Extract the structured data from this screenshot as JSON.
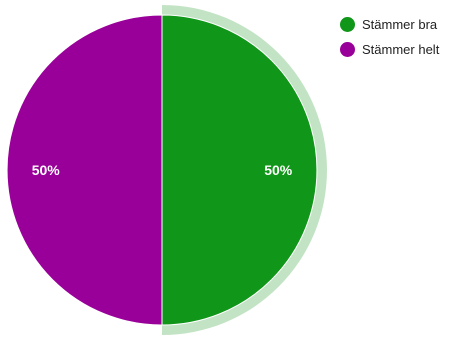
{
  "chart_data": {
    "type": "pie",
    "title": "",
    "categories": [
      "Stämmer bra",
      "Stämmer helt"
    ],
    "values": [
      50,
      50
    ],
    "data_labels": [
      "50%",
      "50%"
    ],
    "colors": [
      "#109618",
      "#990099"
    ],
    "highlight_color": "#c3e3c5",
    "highlighted_category": "Stämmer bra",
    "legend_placement": "right"
  },
  "legend": {
    "items": [
      {
        "label": "Stämmer bra",
        "color": "#109618"
      },
      {
        "label": "Stämmer helt",
        "color": "#990099"
      }
    ]
  }
}
